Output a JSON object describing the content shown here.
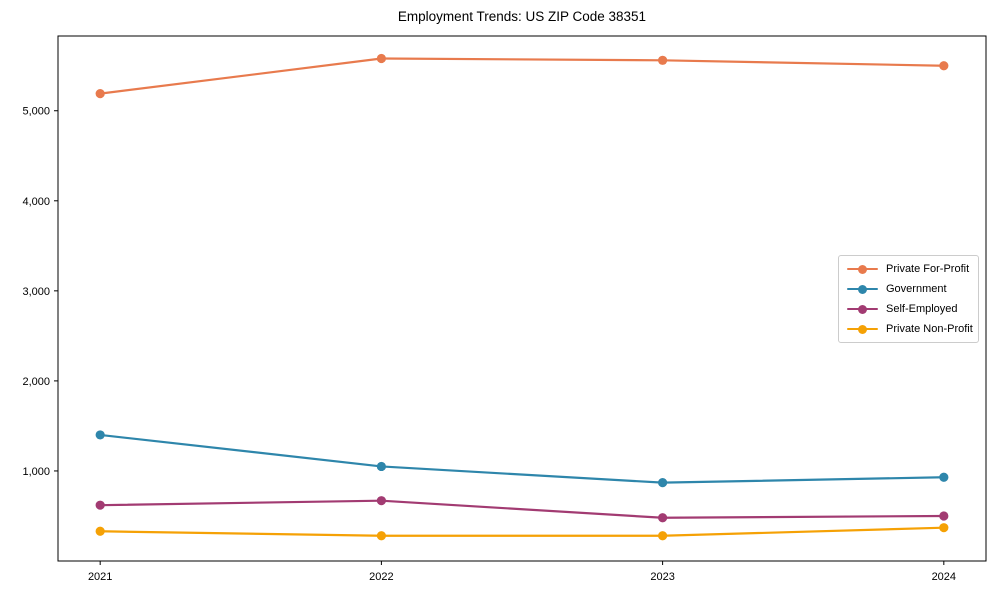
{
  "title": "Employment Trends: US ZIP Code 38351",
  "chart_data": {
    "type": "line",
    "title": "Employment Trends: US ZIP Code 38351",
    "xlabel": "",
    "ylabel": "",
    "x": [
      2021,
      2022,
      2023,
      2024
    ],
    "xtick_labels": [
      "2021",
      "2022",
      "2023",
      "2024"
    ],
    "yticks": [
      1000,
      2000,
      3000,
      4000,
      5000
    ],
    "ytick_labels": [
      "1,000",
      "2,000",
      "3,000",
      "4,000",
      "5,000"
    ],
    "ylim": [
      0,
      5830
    ],
    "grid": false,
    "legend_position": "center right",
    "marker": "circle",
    "series": [
      {
        "name": "Private For-Profit",
        "color": "#E87A4D",
        "values": [
          5190,
          5580,
          5560,
          5500
        ]
      },
      {
        "name": "Government",
        "color": "#2E86AB",
        "values": [
          1400,
          1050,
          870,
          930
        ]
      },
      {
        "name": "Self-Employed",
        "color": "#A23B72",
        "values": [
          620,
          670,
          480,
          500
        ]
      },
      {
        "name": "Private Non-Profit",
        "color": "#F5A105",
        "values": [
          330,
          280,
          280,
          370
        ]
      }
    ]
  }
}
